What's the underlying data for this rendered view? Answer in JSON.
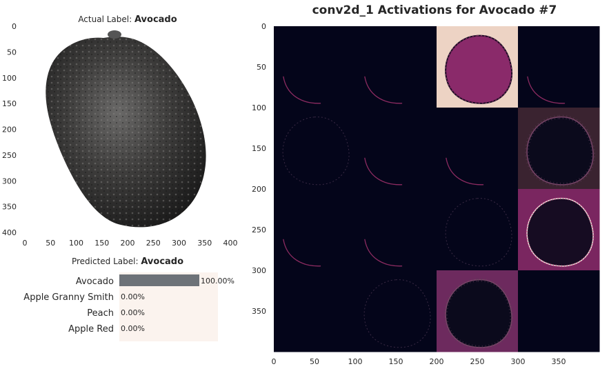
{
  "left_title": {
    "prefix": "Actual Label: ",
    "label": "Avocado"
  },
  "pred_title": {
    "prefix": "Predicted Label: ",
    "label": "Avocado"
  },
  "right_title": "conv2d_1 Activations for Avocado #7",
  "chart_data": [
    {
      "type": "image",
      "title": "Actual Label: Avocado",
      "xticks": [
        0,
        50,
        100,
        150,
        200,
        250,
        300,
        350,
        400
      ],
      "yticks": [
        0,
        50,
        100,
        150,
        200,
        250,
        300,
        350,
        400
      ],
      "xlim": [
        0,
        400
      ],
      "ylim": [
        400,
        0
      ],
      "grid": false
    },
    {
      "type": "bar",
      "orientation": "horizontal",
      "title": "Predicted Label: Avocado",
      "categories": [
        "Avocado",
        "Apple Granny Smith",
        "Peach",
        "Apple Red"
      ],
      "values": [
        100.0,
        0.0,
        0.0,
        0.0
      ],
      "value_labels": [
        "100.00%",
        "0.00%",
        "0.00%",
        "0.00%"
      ],
      "xlim": [
        0,
        100
      ],
      "bar_color": "#6d7278"
    },
    {
      "type": "heatmap",
      "title": "conv2d_1 Activations for Avocado #7",
      "grid_rows": 4,
      "grid_cols": 4,
      "tile_size": 100,
      "xticks": [
        0,
        50,
        100,
        150,
        200,
        250,
        300,
        350
      ],
      "yticks": [
        0,
        50,
        100,
        150,
        200,
        250,
        300,
        350
      ],
      "xlim": [
        0,
        400
      ],
      "ylim": [
        400,
        0
      ],
      "colormap": "rocket",
      "tiles": [
        {
          "row": 0,
          "col": 0,
          "background": "#04051a",
          "activation": "edge-faint"
        },
        {
          "row": 0,
          "col": 1,
          "background": "#04051a",
          "activation": "edge-faint"
        },
        {
          "row": 0,
          "col": 2,
          "background": "#edd3c4",
          "activation": "fill-strong"
        },
        {
          "row": 0,
          "col": 3,
          "background": "#04051a",
          "activation": "edge-faint"
        },
        {
          "row": 1,
          "col": 0,
          "background": "#04051a",
          "activation": "texture-faint"
        },
        {
          "row": 1,
          "col": 1,
          "background": "#04051a",
          "activation": "edge-faint"
        },
        {
          "row": 1,
          "col": 2,
          "background": "#04051a",
          "activation": "edge-faint"
        },
        {
          "row": 1,
          "col": 3,
          "background": "#3a2330",
          "activation": "texture"
        },
        {
          "row": 2,
          "col": 0,
          "background": "#04051a",
          "activation": "edge-faint"
        },
        {
          "row": 2,
          "col": 1,
          "background": "#04051a",
          "activation": "edge-faint"
        },
        {
          "row": 2,
          "col": 2,
          "background": "#04051a",
          "activation": "texture-faint"
        },
        {
          "row": 2,
          "col": 3,
          "background": "#7a2660",
          "activation": "texture-strong"
        },
        {
          "row": 3,
          "col": 0,
          "background": "#04051a",
          "activation": "none"
        },
        {
          "row": 3,
          "col": 1,
          "background": "#04051a",
          "activation": "texture-faint"
        },
        {
          "row": 3,
          "col": 2,
          "background": "#6d2a5e",
          "activation": "texture"
        },
        {
          "row": 3,
          "col": 3,
          "background": "#04051a",
          "activation": "none"
        }
      ]
    }
  ]
}
